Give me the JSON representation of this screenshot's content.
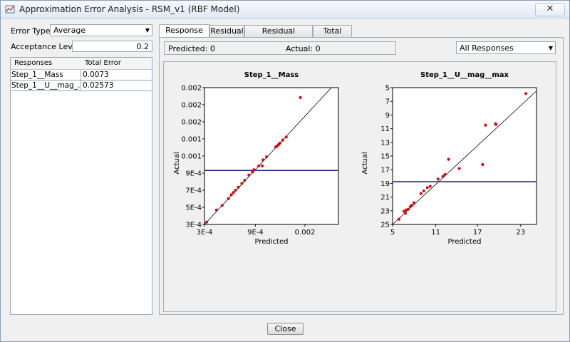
{
  "window": {
    "title": "Approximation Error Analysis - RSM_v1 (RBF Model)",
    "close_glyph": "✕"
  },
  "left": {
    "error_type_label": "Error Type:",
    "error_type_value": "Average",
    "acceptance_label": "Acceptance Level:",
    "acceptance_value": "0.2",
    "table": {
      "headers": [
        "Responses",
        "Total Error"
      ],
      "rows": [
        {
          "response": "Step_1__Mass",
          "error": "0.0073"
        },
        {
          "response": "Step_1__U__mag_...",
          "error": "0.02573"
        }
      ]
    }
  },
  "tabs": [
    "Response Fit",
    "Residual",
    "Residual Frequency",
    "Total Error"
  ],
  "active_tab": "Response Fit",
  "info": {
    "predicted": "Predicted: 0",
    "actual": "Actual: 0"
  },
  "response_filter": "All Responses",
  "colors": {
    "points": "#cc1111",
    "hline": "#1a1a8c",
    "diag": "#000000"
  },
  "chart_data": [
    {
      "type": "scatter",
      "title": "Step_1__Mass",
      "xlabel": "Predicted",
      "ylabel": "Actual",
      "x_ticks": [
        "3E-4",
        "9E-4",
        "0.002"
      ],
      "y_ticks": [
        "0.002",
        "0.002",
        "0.002",
        "0.001",
        "0.001",
        "9E-4",
        "7E-4",
        "5E-4",
        "3E-4"
      ],
      "xlim": [
        0.0003,
        0.0022
      ],
      "ylim": [
        0.0003,
        0.0021
      ],
      "reference_line_y": 0.00101,
      "points": [
        [
          0.00033,
          0.00033
        ],
        [
          0.00047,
          0.00049
        ],
        [
          0.00055,
          0.00055
        ],
        [
          0.00064,
          0.00064
        ],
        [
          0.00068,
          0.00069
        ],
        [
          0.00071,
          0.00072
        ],
        [
          0.00074,
          0.00075
        ],
        [
          0.00078,
          0.00079
        ],
        [
          0.00083,
          0.00084
        ],
        [
          0.00087,
          0.00088
        ],
        [
          0.00093,
          0.00095
        ],
        [
          0.00098,
          0.00099
        ],
        [
          0.001,
          0.00102
        ],
        [
          0.00107,
          0.00107
        ],
        [
          0.00112,
          0.00107
        ],
        [
          0.00113,
          0.00115
        ],
        [
          0.00118,
          0.00119
        ],
        [
          0.00131,
          0.00132
        ],
        [
          0.00133,
          0.00133
        ],
        [
          0.00135,
          0.00135
        ],
        [
          0.00137,
          0.00137
        ],
        [
          0.00141,
          0.00141
        ],
        [
          0.00146,
          0.00145
        ],
        [
          0.00166,
          0.00197
        ]
      ]
    },
    {
      "type": "scatter",
      "title": "Step_1__U__mag__max",
      "xlabel": "Predicted",
      "ylabel": "Actual",
      "x_ticks": [
        "5",
        "11",
        "17",
        "23"
      ],
      "y_ticks": [
        "5",
        "7",
        "9",
        "11",
        "13",
        "15",
        "17",
        "19",
        "21",
        "23",
        "25"
      ],
      "xlim": [
        5,
        25.3
      ],
      "ylim": [
        5,
        25.8
      ],
      "reference_line_y": 11.5,
      "points": [
        [
          5.9,
          5.8
        ],
        [
          6.6,
          7.0
        ],
        [
          6.8,
          6.7
        ],
        [
          6.9,
          7.2
        ],
        [
          7.2,
          7.3
        ],
        [
          7.5,
          7.7
        ],
        [
          7.7,
          7.9
        ],
        [
          8.0,
          8.3
        ],
        [
          9.0,
          9.7
        ],
        [
          9.4,
          10.1
        ],
        [
          9.9,
          10.6
        ],
        [
          10.3,
          10.8
        ],
        [
          11.4,
          11.9
        ],
        [
          12.1,
          12.3
        ],
        [
          12.4,
          12.6
        ],
        [
          12.9,
          14.9
        ],
        [
          14.4,
          13.5
        ],
        [
          17.7,
          14.1
        ],
        [
          18.1,
          20.1
        ],
        [
          19.5,
          20.3
        ],
        [
          19.6,
          20.2
        ],
        [
          23.8,
          24.9
        ]
      ]
    }
  ],
  "footer": {
    "close_label": "Close"
  }
}
